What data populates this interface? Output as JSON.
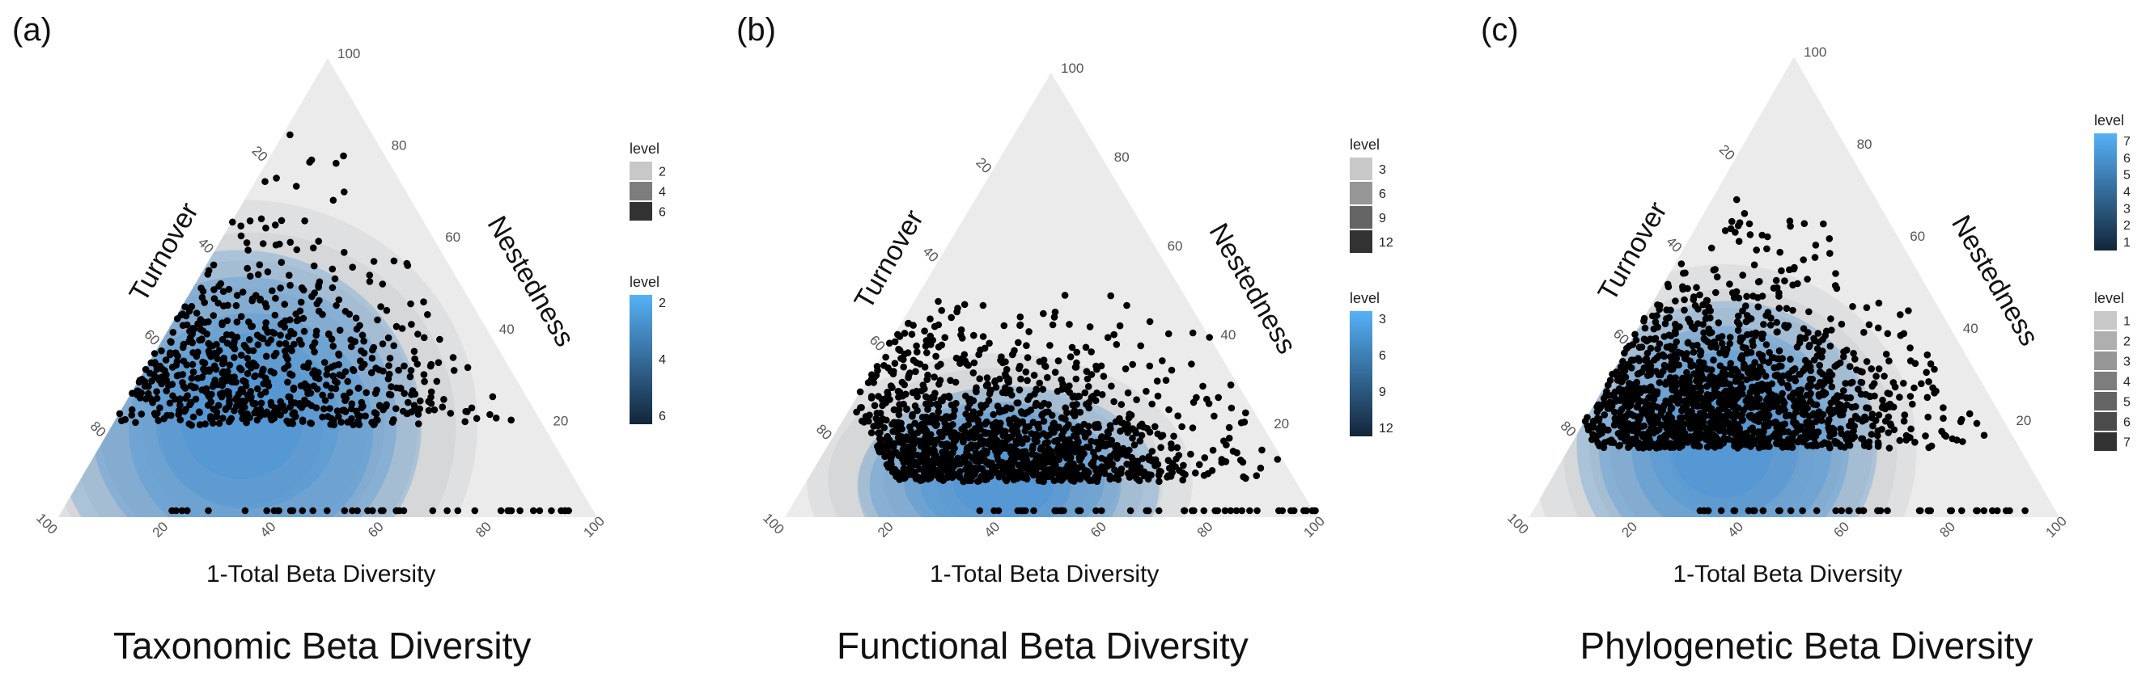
{
  "chart_data": [
    {
      "type": "ternary-scatter-density",
      "panel_label": "(a)",
      "title": "Taxonomic Beta Diversity",
      "axes": {
        "bottom": "1-Total Beta Diversity",
        "left": "Turnover",
        "right": "Nestedness"
      },
      "ticks": [
        "20",
        "40",
        "60",
        "80",
        "100"
      ],
      "legend_gray": {
        "title": "level",
        "ticks": [
          "2",
          "4",
          "6"
        ]
      },
      "legend_blue": {
        "title": "level",
        "ticks": [
          "2",
          "4",
          "6"
        ]
      },
      "cloud": {
        "turnover_range": [
          0.05,
          0.95
        ],
        "nestedness_range": [
          0.0,
          0.85
        ],
        "center": {
          "turnover": 0.55,
          "nestedness": 0.2
        }
      },
      "n_points": 700
    },
    {
      "type": "ternary-scatter-density",
      "panel_label": "(b)",
      "title": "Functional Beta Diversity",
      "axes": {
        "bottom": "1-Total Beta Diversity",
        "left": "Turnover",
        "right": "Nestedness"
      },
      "ticks": [
        "20",
        "40",
        "60",
        "80",
        "100"
      ],
      "legend_gray": {
        "title": "level",
        "ticks": [
          "3",
          "6",
          "9",
          "12"
        ]
      },
      "legend_blue": {
        "title": "level",
        "ticks": [
          "3",
          "6",
          "9",
          "12"
        ]
      },
      "cloud": {
        "turnover_range": [
          0.0,
          0.75
        ],
        "nestedness_range": [
          0.0,
          0.5
        ],
        "center": {
          "turnover": 0.55,
          "nestedness": 0.08
        }
      },
      "n_points": 1300
    },
    {
      "type": "ternary-scatter-density",
      "panel_label": "(c)",
      "title": "Phylogenetic Beta Diversity",
      "axes": {
        "bottom": "1-Total Beta Diversity",
        "left": "Turnover",
        "right": "Nestedness"
      },
      "ticks": [
        "20",
        "40",
        "60",
        "80",
        "100"
      ],
      "legend_blue": {
        "title": "level",
        "ticks": [
          "7",
          "6",
          "5",
          "4",
          "3",
          "2",
          "1"
        ]
      },
      "legend_gray": {
        "title": "level",
        "ticks": [
          "1",
          "2",
          "3",
          "4",
          "5",
          "6",
          "7"
        ]
      },
      "cloud": {
        "turnover_range": [
          0.05,
          0.8
        ],
        "nestedness_range": [
          0.0,
          0.7
        ],
        "center": {
          "turnover": 0.55,
          "nestedness": 0.15
        }
      },
      "n_points": 1500
    }
  ],
  "colors": {
    "triangle_fill": "#ebebeb",
    "density_gray": "#9aa0a8",
    "density_blue": "#3d8fd6",
    "point": "#000000",
    "blue_dark": "#13253a",
    "blue_light": "#56b1f7"
  }
}
